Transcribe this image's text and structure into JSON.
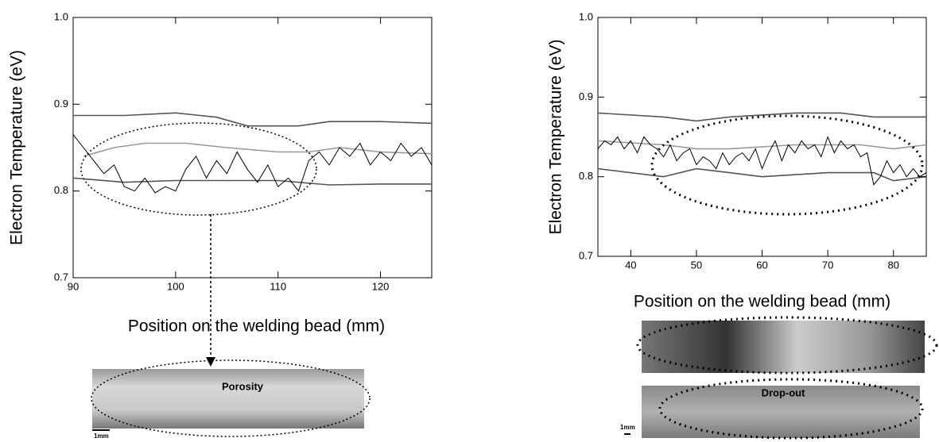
{
  "chart_data": [
    {
      "type": "line",
      "xlabel": "Position on the welding bead (mm)",
      "ylabel": "Electron Temperature (eV)",
      "xlim": [
        90,
        125
      ],
      "ylim": [
        0.7,
        1.0
      ],
      "xticks": [
        90,
        100,
        110,
        120
      ],
      "yticks": [
        0.7,
        0.8,
        0.9,
        {
          "value": 1,
          "label": "1.0"
        }
      ],
      "series": [
        {
          "color": "#555555",
          "x": [
            90,
            95,
            100,
            104,
            107,
            112,
            115,
            120,
            125
          ],
          "values": [
            0.887,
            0.887,
            0.89,
            0.885,
            0.875,
            0.875,
            0.88,
            0.88,
            0.878
          ]
        },
        {
          "color": "#999999",
          "x": [
            91,
            94,
            97,
            101,
            105,
            110,
            113,
            116,
            120,
            125
          ],
          "values": [
            0.84,
            0.85,
            0.855,
            0.855,
            0.85,
            0.845,
            0.845,
            0.85,
            0.845,
            0.843
          ]
        },
        {
          "color": "#555555",
          "x": [
            90,
            95,
            100,
            105,
            110,
            112,
            115,
            120,
            125
          ],
          "values": [
            0.815,
            0.81,
            0.812,
            0.812,
            0.812,
            0.81,
            0.807,
            0.808,
            0.808
          ]
        },
        {
          "color": "#000000",
          "x": [
            90,
            91,
            92,
            93,
            94,
            95,
            96,
            97,
            98,
            99,
            100,
            101,
            102,
            103,
            104,
            105,
            106,
            107,
            108,
            109,
            110,
            111,
            112,
            113,
            114,
            115,
            116,
            117,
            118,
            119,
            120,
            121,
            122,
            123,
            124,
            125
          ],
          "values": [
            0.865,
            0.85,
            0.835,
            0.82,
            0.83,
            0.805,
            0.8,
            0.815,
            0.798,
            0.805,
            0.8,
            0.825,
            0.84,
            0.815,
            0.835,
            0.82,
            0.845,
            0.825,
            0.81,
            0.83,
            0.805,
            0.815,
            0.8,
            0.835,
            0.845,
            0.83,
            0.85,
            0.84,
            0.855,
            0.83,
            0.845,
            0.835,
            0.855,
            0.84,
            0.85,
            0.83
          ]
        }
      ],
      "image_labels": [
        "Porosity",
        "1mm"
      ]
    },
    {
      "type": "line",
      "xlabel": "Position on the welding bead (mm)",
      "ylabel": "Electron Temperature (eV)",
      "xlim": [
        35,
        85
      ],
      "ylim": [
        0.7,
        1.0
      ],
      "xticks": [
        40,
        50,
        60,
        70,
        80
      ],
      "yticks": [
        0.7,
        0.8,
        0.9,
        {
          "value": 1,
          "label": "1.0"
        }
      ],
      "series": [
        {
          "color": "#555555",
          "x": [
            35,
            45,
            50,
            55,
            65,
            72,
            77,
            85
          ],
          "values": [
            0.88,
            0.875,
            0.87,
            0.875,
            0.88,
            0.88,
            0.875,
            0.875
          ]
        },
        {
          "color": "#999999",
          "x": [
            35,
            45,
            50,
            55,
            65,
            75,
            80,
            85
          ],
          "values": [
            0.845,
            0.84,
            0.835,
            0.835,
            0.84,
            0.84,
            0.835,
            0.84
          ]
        },
        {
          "color": "#555555",
          "x": [
            35,
            45,
            50,
            55,
            60,
            70,
            77,
            80,
            85
          ],
          "values": [
            0.81,
            0.8,
            0.81,
            0.805,
            0.8,
            0.805,
            0.805,
            0.795,
            0.8
          ]
        },
        {
          "color": "#000000",
          "x": [
            35,
            36,
            37,
            38,
            39,
            40,
            41,
            42,
            43,
            44,
            45,
            46,
            47,
            48,
            49,
            50,
            51,
            52,
            53,
            54,
            55,
            56,
            57,
            58,
            59,
            60,
            61,
            62,
            63,
            64,
            65,
            66,
            67,
            68,
            69,
            70,
            71,
            72,
            73,
            74,
            75,
            76,
            77,
            78,
            79,
            80,
            81,
            82,
            83,
            84,
            85
          ],
          "values": [
            0.835,
            0.845,
            0.84,
            0.85,
            0.835,
            0.845,
            0.83,
            0.85,
            0.84,
            0.835,
            0.825,
            0.84,
            0.82,
            0.83,
            0.835,
            0.815,
            0.825,
            0.82,
            0.81,
            0.83,
            0.815,
            0.825,
            0.83,
            0.82,
            0.835,
            0.81,
            0.83,
            0.845,
            0.82,
            0.84,
            0.83,
            0.845,
            0.835,
            0.84,
            0.825,
            0.85,
            0.83,
            0.845,
            0.835,
            0.84,
            0.825,
            0.83,
            0.79,
            0.8,
            0.82,
            0.805,
            0.815,
            0.8,
            0.81,
            0.8,
            0.805
          ]
        }
      ],
      "image_labels": [
        "Drop-out",
        "1mm"
      ]
    }
  ]
}
